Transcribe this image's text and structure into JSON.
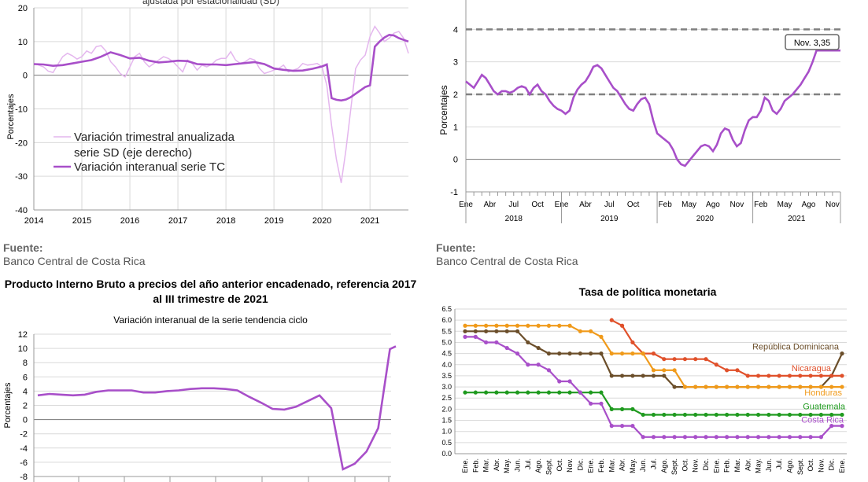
{
  "panel_tl": {
    "title_partial": "ajustada por estacionalidad (SD)",
    "source_label": "Fuente:",
    "source_text": "Banco Central de Costa Rica"
  },
  "panel_tr": {
    "source_label": "Fuente:",
    "source_text": "Banco Central de Costa Rica"
  },
  "panel_bl": {
    "title": "Producto Interno Bruto a precios del año anterior encadenado, referencia 2017 al III trimestre de 2021",
    "subtitle": "Variación interanual de la serie tendencia ciclo"
  },
  "panel_br": {
    "title": "Tasa de política monetaria"
  },
  "colors": {
    "purple": "#a84fc9",
    "light_purple": "#e4b6ee",
    "green": "#1f9a1f",
    "orange": "#f09a1a",
    "red": "#e0502a",
    "brown": "#6b4e2a",
    "grid": "#d9d9d9",
    "dash": "#808080"
  },
  "chart_data": [
    {
      "id": "chart_tl",
      "type": "line",
      "ylabel": "Porcentajes",
      "ylim": [
        -40,
        20
      ],
      "yticks": [
        20,
        10,
        0,
        -10,
        -20,
        -30,
        -40
      ],
      "xlim": [
        2014,
        2021.8
      ],
      "xticks": [
        "2014",
        "2015",
        "2016",
        "2017",
        "2018",
        "2019",
        "2020",
        "2021"
      ],
      "legend": [
        "Variación trimestral anualizada serie SD (eje derecho)",
        "Variación interanual serie TC"
      ],
      "grid": true,
      "series": [
        {
          "name": "Variación trimestral anualizada serie SD (eje derecho)",
          "x": [
            2014,
            2014.1,
            2014.2,
            2014.3,
            2014.4,
            2014.5,
            2014.6,
            2014.7,
            2014.8,
            2014.9,
            2015,
            2015.1,
            2015.2,
            2015.3,
            2015.4,
            2015.5,
            2015.6,
            2015.7,
            2015.8,
            2015.9,
            2016,
            2016.1,
            2016.2,
            2016.3,
            2016.4,
            2016.5,
            2016.6,
            2016.7,
            2016.8,
            2016.9,
            2017,
            2017.1,
            2017.2,
            2017.3,
            2017.4,
            2017.5,
            2017.6,
            2017.7,
            2017.8,
            2017.9,
            2018,
            2018.1,
            2018.2,
            2018.3,
            2018.4,
            2018.5,
            2018.6,
            2018.7,
            2018.8,
            2018.9,
            2019,
            2019.1,
            2019.2,
            2019.3,
            2019.4,
            2019.5,
            2019.6,
            2019.7,
            2019.8,
            2019.9,
            2020,
            2020.1,
            2020.2,
            2020.3,
            2020.4,
            2020.5,
            2020.6,
            2020.7,
            2020.8,
            2020.9,
            2021,
            2021.1,
            2021.2,
            2021.3,
            2021.4,
            2021.5,
            2021.6,
            2021.7,
            2021.8
          ],
          "y": [
            3.5,
            3.0,
            2.5,
            1.2,
            0.8,
            3.2,
            5.5,
            6.5,
            5.8,
            4.8,
            5.5,
            7.2,
            6.5,
            8.5,
            8.8,
            7.2,
            4.0,
            2.5,
            0.5,
            -0.5,
            2.5,
            5.5,
            6.5,
            4.0,
            2.5,
            3.5,
            4.5,
            5.5,
            5.0,
            4.0,
            2.5,
            1.0,
            4.5,
            3.5,
            1.5,
            3.0,
            2.5,
            3.2,
            4.5,
            5.0,
            5.0,
            7.0,
            4.5,
            3.5,
            4.0,
            5.0,
            4.5,
            2.0,
            0.5,
            1.0,
            1.5,
            2.0,
            3.0,
            1.0,
            1.5,
            2.0,
            3.5,
            3.0,
            3.2,
            3.5,
            2.5,
            -3.0,
            -15.0,
            -25.0,
            -32.0,
            -22.0,
            -10.0,
            2.0,
            4.5,
            6.0,
            11.5,
            14.5,
            12.5,
            10.0,
            11.0,
            12.5,
            13.0,
            11.0,
            6.5
          ]
        },
        {
          "name": "Variación interanual serie TC",
          "x": [
            2014,
            2014.2,
            2014.4,
            2014.6,
            2014.8,
            2015,
            2015.2,
            2015.4,
            2015.6,
            2015.8,
            2016,
            2016.2,
            2016.4,
            2016.6,
            2016.8,
            2017,
            2017.2,
            2017.4,
            2017.6,
            2017.8,
            2018,
            2018.2,
            2018.4,
            2018.6,
            2018.8,
            2019,
            2019.2,
            2019.4,
            2019.6,
            2019.8,
            2020,
            2020.1,
            2020.2,
            2020.3,
            2020.4,
            2020.5,
            2020.6,
            2020.7,
            2020.8,
            2020.9,
            2021,
            2021.1,
            2021.2,
            2021.3,
            2021.4,
            2021.5,
            2021.6,
            2021.7,
            2021.8
          ],
          "y": [
            3.3,
            3.2,
            2.8,
            3.0,
            3.5,
            4.0,
            4.5,
            5.5,
            6.8,
            6.0,
            5.0,
            5.2,
            4.3,
            3.8,
            4.0,
            4.3,
            4.2,
            3.3,
            3.2,
            3.2,
            3.0,
            3.3,
            3.6,
            3.9,
            3.3,
            2.0,
            1.6,
            1.3,
            1.4,
            1.9,
            2.6,
            3.2,
            -6.8,
            -7.3,
            -7.5,
            -7.2,
            -6.5,
            -5.5,
            -4.5,
            -3.5,
            -3.0,
            8.5,
            10.0,
            11.2,
            12.0,
            11.8,
            11.0,
            10.5,
            10.0
          ]
        }
      ]
    },
    {
      "id": "chart_tr",
      "type": "line",
      "ylabel": "Porcentajes",
      "ylim": [
        -1,
        5
      ],
      "yticks": [
        4,
        3,
        2,
        1,
        0,
        -1
      ],
      "xticks": [
        "Ene",
        "Abr",
        "Jul",
        "Oct",
        "Ene",
        "Abr",
        "Jul",
        "Oct",
        "Feb",
        "May",
        "Ago",
        "Nov",
        "Feb",
        "May",
        "Ago",
        "Nov"
      ],
      "year_labels": [
        "2018",
        "2019",
        "2020",
        "2021"
      ],
      "reference_lines": [
        4,
        2
      ],
      "annotation": "Nov. 3,35",
      "grid": true,
      "series": [
        {
          "name": "",
          "x": [
            0,
            0.5,
            1,
            1.5,
            2,
            2.5,
            3,
            3.5,
            4,
            4.5,
            5,
            5.5,
            6,
            6.5,
            7,
            7.5,
            8,
            8.5,
            9,
            9.5,
            10,
            10.5,
            11,
            11.5,
            12,
            12.5,
            13,
            13.5,
            14,
            14.5,
            15,
            15.5,
            16,
            16.5,
            17,
            17.5,
            18,
            18.5,
            19,
            19.5,
            20,
            20.5,
            21,
            21.5,
            22,
            22.5,
            23,
            23.5,
            24,
            24.5,
            25,
            25.5,
            26,
            26.5,
            27,
            27.5,
            28,
            28.5,
            29,
            29.5,
            30,
            30.5,
            31,
            31.5,
            32,
            32.5,
            33,
            33.5,
            34,
            34.5,
            35,
            35.5,
            36,
            36.5,
            37,
            37.5,
            38,
            38.5,
            39,
            39.5,
            40,
            40.5,
            41,
            41.5,
            42,
            42.5,
            43,
            43.5,
            44,
            44.5,
            45,
            45.5,
            46,
            46.5,
            47
          ],
          "y": [
            2.4,
            2.3,
            2.2,
            2.4,
            2.6,
            2.5,
            2.3,
            2.1,
            2.0,
            2.1,
            2.1,
            2.05,
            2.1,
            2.2,
            2.25,
            2.2,
            2.0,
            2.2,
            2.3,
            2.1,
            2.0,
            1.8,
            1.65,
            1.55,
            1.5,
            1.4,
            1.5,
            1.9,
            2.15,
            2.3,
            2.4,
            2.6,
            2.85,
            2.9,
            2.8,
            2.6,
            2.4,
            2.2,
            2.1,
            1.9,
            1.7,
            1.55,
            1.5,
            1.7,
            1.85,
            1.9,
            1.7,
            1.2,
            0.8,
            0.7,
            0.6,
            0.5,
            0.3,
            0.0,
            -0.15,
            -0.2,
            -0.05,
            0.1,
            0.25,
            0.4,
            0.45,
            0.4,
            0.25,
            0.45,
            0.8,
            0.95,
            0.9,
            0.6,
            0.4,
            0.5,
            0.9,
            1.2,
            1.3,
            1.3,
            1.5,
            1.9,
            1.8,
            1.5,
            1.4,
            1.55,
            1.8,
            1.9,
            2.0,
            2.15,
            2.3,
            2.5,
            2.7,
            3.0,
            3.35,
            3.35,
            3.35,
            3.35,
            3.35,
            3.35,
            3.35
          ]
        }
      ]
    },
    {
      "id": "chart_bl",
      "type": "line",
      "title": "Producto Interno Bruto a precios del año anterior encadenado, referencia 2017 al III trimestre de 2021",
      "subtitle": "Variación interanual de la serie tendencia ciclo",
      "ylabel": "Porcentajes",
      "ylim": [
        -8,
        12
      ],
      "yticks": [
        12,
        10,
        8,
        6,
        4,
        2,
        0,
        -2,
        -4,
        -6,
        -8
      ],
      "grid": true,
      "series": [
        {
          "name": "",
          "x": [
            0,
            1,
            2,
            3,
            4,
            5,
            6,
            7,
            8,
            9,
            10,
            11,
            12,
            13,
            14,
            15,
            16,
            17,
            18,
            19,
            20,
            21,
            22,
            23,
            24,
            25,
            26,
            27,
            28,
            29,
            30
          ],
          "y": [
            3.4,
            3.6,
            3.5,
            3.4,
            3.5,
            3.9,
            4.1,
            4.1,
            4.1,
            3.8,
            3.8,
            4.0,
            4.1,
            4.3,
            4.4,
            4.4,
            4.3,
            4.1,
            3.2,
            2.4,
            1.5,
            1.4,
            1.8,
            2.6,
            3.4,
            1.6,
            -7.0,
            -6.2,
            -4.5,
            -1.2,
            9.9
          ]
        }
      ]
    },
    {
      "id": "chart_br",
      "type": "line",
      "title": "Tasa de política monetaria",
      "ylim": [
        0,
        6.5
      ],
      "yticks": [
        "6.5",
        "6.0",
        "5.5",
        "5.0",
        "4.5",
        "4.0",
        "3.5",
        "3.0",
        "2.5",
        "2.0",
        "1.5",
        "1.0",
        "0.5",
        "0.0"
      ],
      "xticks": [
        "Ene.",
        "Feb.",
        "Mar.",
        "Abr.",
        "May.",
        "Jun.",
        "Jul.",
        "Ago.",
        "Sept.",
        "Oct.",
        "Nov.",
        "Dic.",
        "Ene.",
        "Feb.",
        "Mar.",
        "Abr.",
        "May.",
        "Jun.",
        "Jul.",
        "Ago.",
        "Sept.",
        "Oct.",
        "Nov.",
        "Dic.",
        "Ene.",
        "Feb.",
        "Mar.",
        "Abr.",
        "May.",
        "Jun.",
        "Jul.",
        "Ago.",
        "Sept.",
        "Oct.",
        "Nov.",
        "Dic.",
        "Ene."
      ],
      "grid": true,
      "series": [
        {
          "name": "República Dominicana",
          "start": 0,
          "values": [
            5.5,
            5.5,
            5.5,
            5.5,
            5.5,
            5.5,
            5.0,
            4.75,
            4.5,
            4.5,
            4.5,
            4.5,
            4.5,
            4.5,
            3.5,
            3.5,
            3.5,
            3.5,
            3.5,
            3.5,
            3.0,
            3.0,
            3.0,
            3.0,
            3.0,
            3.0,
            3.0,
            3.0,
            3.0,
            3.0,
            3.0,
            3.0,
            3.0,
            3.0,
            3.0,
            3.5,
            4.5
          ]
        },
        {
          "name": "Nicaragua",
          "start": 14,
          "values": [
            6.0,
            5.75,
            5.0,
            4.5,
            4.5,
            4.25,
            4.25,
            4.25,
            4.25,
            4.25,
            4.0,
            3.75,
            3.75,
            3.5,
            3.5,
            3.5,
            3.5,
            3.5,
            3.5,
            3.5,
            3.5,
            3.5,
            3.5
          ]
        },
        {
          "name": "Honduras",
          "start": 0,
          "values": [
            5.75,
            5.75,
            5.75,
            5.75,
            5.75,
            5.75,
            5.75,
            5.75,
            5.75,
            5.75,
            5.75,
            5.5,
            5.5,
            5.25,
            4.5,
            4.5,
            4.5,
            4.5,
            3.75,
            3.75,
            3.75,
            3.0,
            3.0,
            3.0,
            3.0,
            3.0,
            3.0,
            3.0,
            3.0,
            3.0,
            3.0,
            3.0,
            3.0,
            3.0,
            3.0,
            3.0,
            3.0
          ]
        },
        {
          "name": "Guatemala",
          "start": 0,
          "values": [
            2.75,
            2.75,
            2.75,
            2.75,
            2.75,
            2.75,
            2.75,
            2.75,
            2.75,
            2.75,
            2.75,
            2.75,
            2.75,
            2.75,
            2.0,
            2.0,
            2.0,
            1.75,
            1.75,
            1.75,
            1.75,
            1.75,
            1.75,
            1.75,
            1.75,
            1.75,
            1.75,
            1.75,
            1.75,
            1.75,
            1.75,
            1.75,
            1.75,
            1.75,
            1.75,
            1.75,
            1.75
          ]
        },
        {
          "name": "Costa Rica",
          "start": 0,
          "values": [
            5.25,
            5.25,
            5.0,
            5.0,
            4.75,
            4.5,
            4.0,
            4.0,
            3.75,
            3.25,
            3.25,
            2.75,
            2.25,
            2.25,
            1.25,
            1.25,
            1.25,
            0.75,
            0.75,
            0.75,
            0.75,
            0.75,
            0.75,
            0.75,
            0.75,
            0.75,
            0.75,
            0.75,
            0.75,
            0.75,
            0.75,
            0.75,
            0.75,
            0.75,
            0.75,
            1.25,
            1.25
          ]
        }
      ]
    }
  ]
}
